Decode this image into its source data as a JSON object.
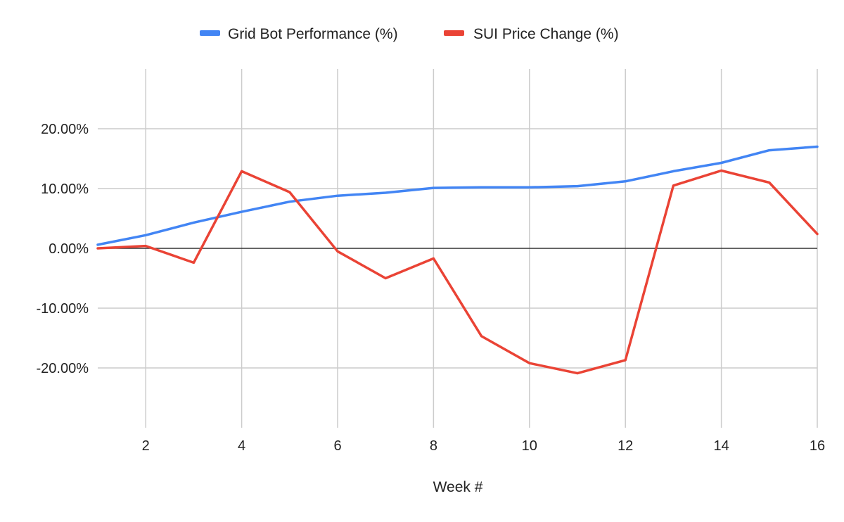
{
  "chart_data": {
    "type": "line",
    "title": "",
    "xlabel": "Week #",
    "ylabel": "",
    "x": [
      1,
      2,
      3,
      4,
      5,
      6,
      7,
      8,
      9,
      10,
      11,
      12,
      13,
      14,
      15,
      16
    ],
    "xlim": [
      1,
      16
    ],
    "ylim": [
      -30,
      30
    ],
    "x_ticks": [
      2,
      4,
      6,
      8,
      10,
      12,
      14,
      16
    ],
    "x_tick_labels": [
      "2",
      "4",
      "6",
      "8",
      "10",
      "12",
      "14",
      "16"
    ],
    "y_ticks": [
      20,
      10,
      0,
      -10,
      -20
    ],
    "y_tick_labels": [
      "20.00%",
      "10.00%",
      "0.00%",
      "-10.00%",
      "-20.00%"
    ],
    "grid": true,
    "legend_position": "top",
    "series": [
      {
        "name": "Grid Bot Performance (%)",
        "color": "#4285F4",
        "values": [
          0.6,
          2.2,
          4.3,
          6.1,
          7.8,
          8.8,
          9.3,
          10.1,
          10.2,
          10.2,
          10.4,
          11.2,
          12.9,
          14.3,
          16.4,
          17.0
        ]
      },
      {
        "name": "SUI Price Change (%)",
        "color": "#EA4335",
        "values": [
          0.0,
          0.4,
          -2.4,
          12.9,
          9.4,
          -0.5,
          -5.0,
          -1.7,
          -14.7,
          -19.2,
          -20.9,
          -18.7,
          10.5,
          13.0,
          11.0,
          2.4
        ]
      }
    ]
  }
}
